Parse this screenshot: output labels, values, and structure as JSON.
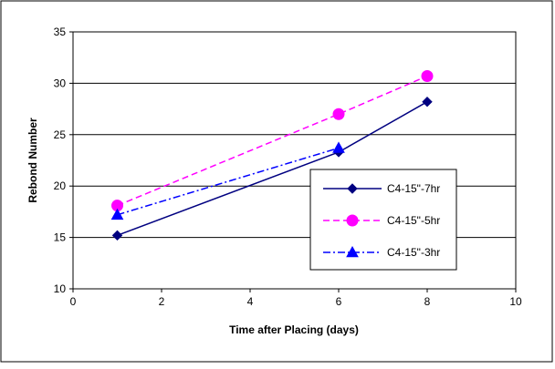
{
  "chart_data": {
    "type": "line",
    "title": "",
    "xlabel": "Time after Placing (days)",
    "ylabel": "Rebond Number",
    "xlim": [
      0,
      10
    ],
    "ylim": [
      10,
      35
    ],
    "x_ticks": [
      "0",
      "2",
      "4",
      "6",
      "8",
      "10"
    ],
    "y_ticks": [
      "10",
      "15",
      "20",
      "25",
      "30",
      "35"
    ],
    "grid": "horizontal",
    "legend_position": "right",
    "series": [
      {
        "name": "C4-15\"-7hr",
        "color": "#000080",
        "marker": "diamond",
        "dash": "solid",
        "points": [
          {
            "x": 1,
            "y": 15.2
          },
          {
            "x": 6,
            "y": 23.3
          },
          {
            "x": 8,
            "y": 28.2
          }
        ]
      },
      {
        "name": "C4-15\"-5hr",
        "color": "#ff00ff",
        "marker": "circle",
        "dash": "dashed",
        "points": [
          {
            "x": 1,
            "y": 18.1
          },
          {
            "x": 6,
            "y": 27.0
          },
          {
            "x": 8,
            "y": 30.7
          }
        ]
      },
      {
        "name": "C4-15\"-3hr",
        "color": "#0000ff",
        "marker": "triangle",
        "dash": "dashdot",
        "points": [
          {
            "x": 1,
            "y": 17.2
          },
          {
            "x": 6,
            "y": 23.7
          }
        ]
      }
    ]
  }
}
